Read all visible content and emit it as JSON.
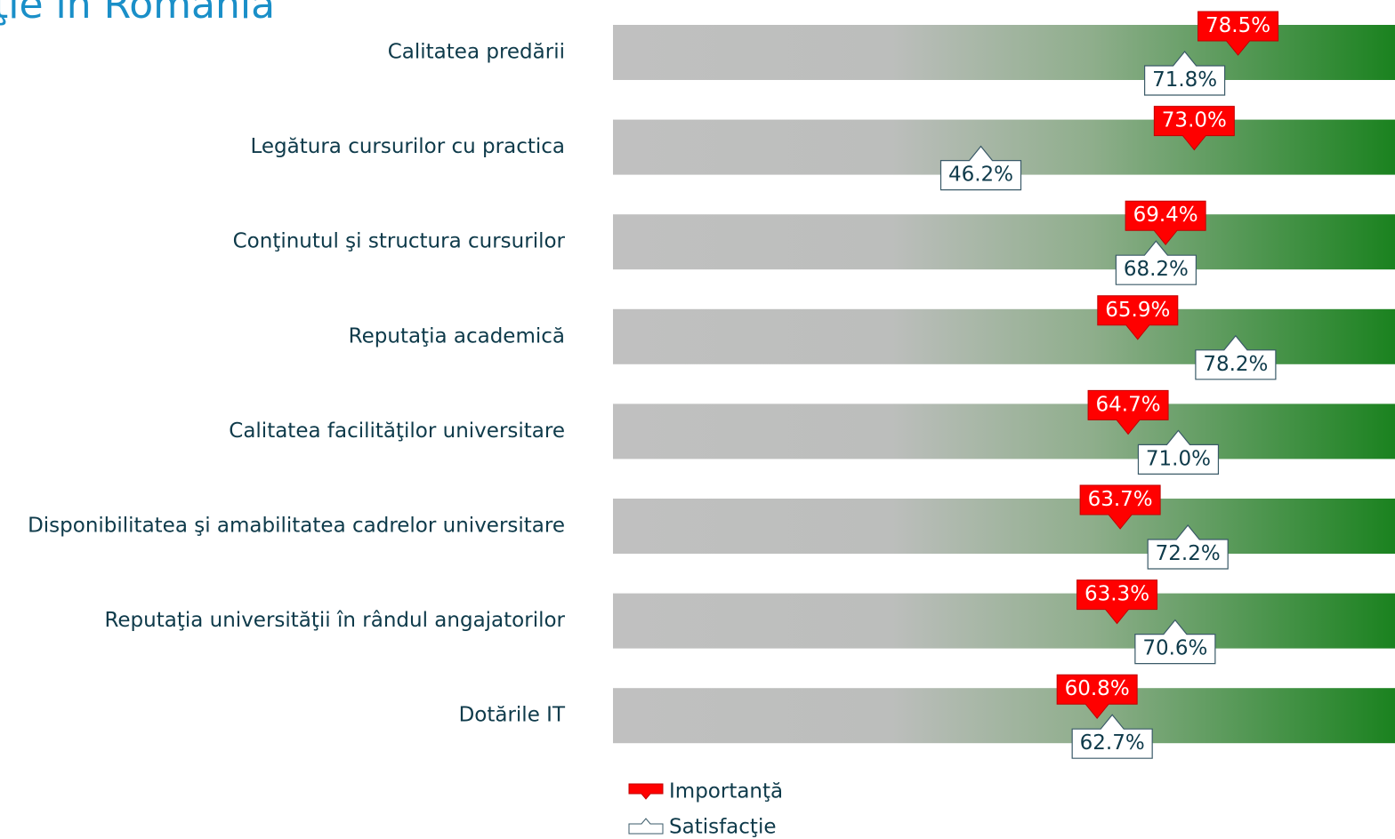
{
  "chart_data": {
    "type": "callout-bar",
    "title": "ţie în România",
    "categories": [
      "Calitatea predării",
      "Legătura cursurilor cu practica",
      "Conţinutul şi structura cursurilor",
      "Reputaţia academică",
      "Calitatea facilităţilor universitare",
      "Disponibilitatea şi amabilitatea cadrelor universitare",
      "Reputaţia universităţii în rândul angajatorilor",
      "Dotările IT"
    ],
    "xlim": [
      0,
      100
    ],
    "series": [
      {
        "name": "Importanţă",
        "color": "#ff0000",
        "values": [
          78.5,
          73.0,
          69.4,
          65.9,
          64.7,
          63.7,
          63.3,
          60.8
        ],
        "value_labels": [
          "78.5%",
          "73.0%",
          "69.4%",
          "65.9%",
          "64.7%",
          "63.7%",
          "63.3%",
          "60.8%"
        ]
      },
      {
        "name": "Satisfacţie",
        "color": "#ffffff",
        "values": [
          71.8,
          46.2,
          68.2,
          78.2,
          71.0,
          72.2,
          70.6,
          62.7
        ],
        "value_labels": [
          "71.8%",
          "46.2%",
          "68.2%",
          "78.2%",
          "71.0%",
          "72.2%",
          "70.6%",
          "62.7%"
        ]
      }
    ]
  }
}
